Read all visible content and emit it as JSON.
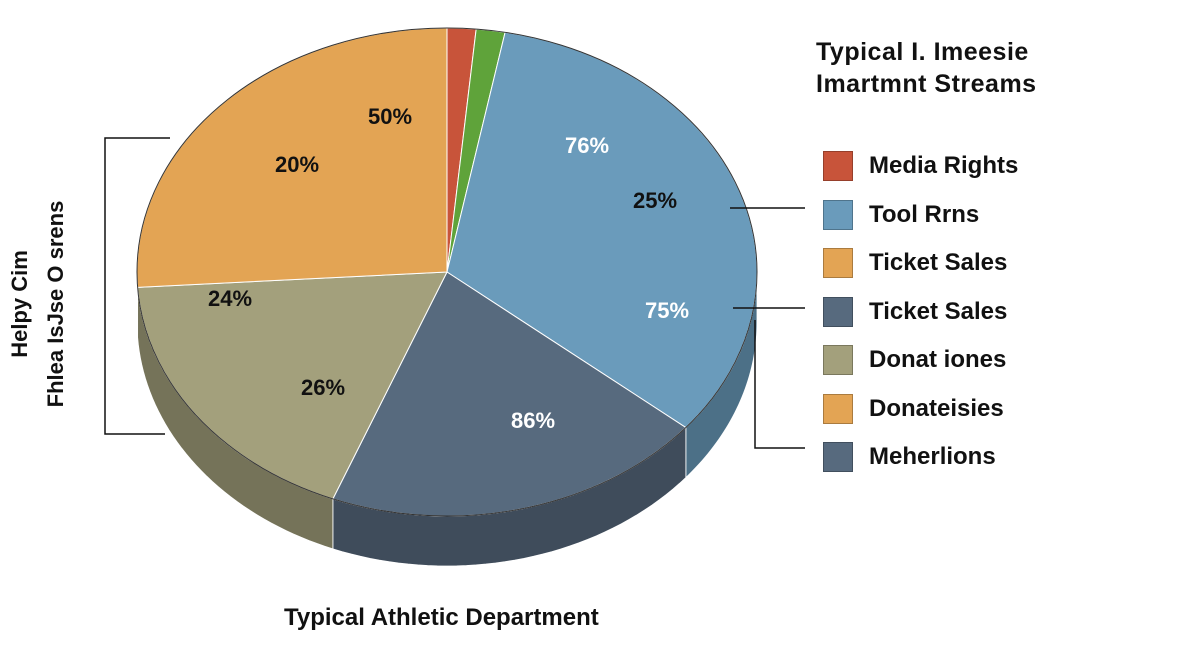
{
  "chart_data": {
    "type": "pie",
    "title_lines": [
      "Typical I. Imeesie",
      "Imartmnt Streams"
    ],
    "xlabel": "Typical Athletic Department",
    "ylabel_lines": [
      "Helpy Cim",
      "Fhlea IsJse O srens"
    ],
    "slices": [
      {
        "color": "#c8543a",
        "share": 1.5,
        "labels": []
      },
      {
        "color": "#5fa33a",
        "share": 1.5,
        "labels": []
      },
      {
        "color": "#6a9bbb",
        "share": 33,
        "labels": [
          "76%",
          "25%",
          "75%"
        ]
      },
      {
        "color": "#576a7e",
        "share": 20,
        "labels": [
          "86%"
        ]
      },
      {
        "color": "#a3a07c",
        "share": 18,
        "labels": [
          "26%"
        ]
      },
      {
        "color": "#e3a454",
        "share": 26,
        "labels": [
          "50%",
          "20%",
          "24%"
        ]
      }
    ],
    "legend": [
      {
        "label": "Media Rights",
        "color": "#c8543a"
      },
      {
        "label": "Tool Rrns",
        "color": "#6a9bbb"
      },
      {
        "label": "Ticket Sales",
        "color": "#e3a454"
      },
      {
        "label": "Ticket Sales",
        "color": "#576a7e"
      },
      {
        "label": "Donat iones",
        "color": "#a3a07c"
      },
      {
        "label": "Donateisies",
        "color": "#e3a454"
      },
      {
        "label": "Meherlions",
        "color": "#576a7e"
      }
    ],
    "legend_position": "right",
    "style": "3d"
  }
}
